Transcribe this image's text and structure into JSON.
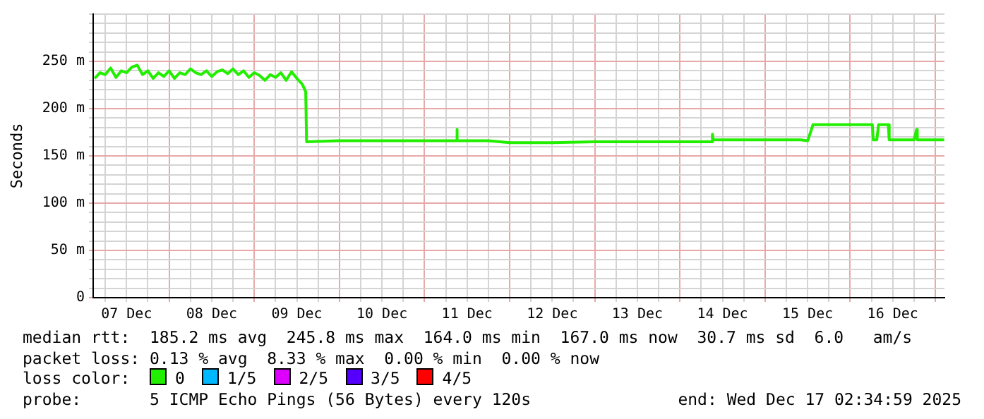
{
  "chart_data": {
    "type": "line",
    "ylabel": "Seconds",
    "xlim": [
      "2025-12-07T02:35",
      "2025-12-17T02:35"
    ],
    "xticks": [
      {
        "value": "2025-12-07T06:00",
        "label": null
      },
      {
        "value": "2025-12-07T12:00",
        "label": "07 Dec"
      },
      {
        "value": "2025-12-07T18:00",
        "label": null
      },
      {
        "value": "2025-12-08T00:00",
        "label": null
      },
      {
        "value": "2025-12-08T06:00",
        "label": null
      },
      {
        "value": "2025-12-08T12:00",
        "label": "08 Dec"
      },
      {
        "value": "2025-12-08T18:00",
        "label": null
      },
      {
        "value": "2025-12-09T00:00",
        "label": null
      },
      {
        "value": "2025-12-09T06:00",
        "label": null
      },
      {
        "value": "2025-12-09T12:00",
        "label": "09 Dec"
      },
      {
        "value": "2025-12-09T18:00",
        "label": null
      },
      {
        "value": "2025-12-10T00:00",
        "label": null
      },
      {
        "value": "2025-12-10T06:00",
        "label": null
      },
      {
        "value": "2025-12-10T12:00",
        "label": "10 Dec"
      },
      {
        "value": "2025-12-10T18:00",
        "label": null
      },
      {
        "value": "2025-12-11T00:00",
        "label": null
      },
      {
        "value": "2025-12-11T06:00",
        "label": null
      },
      {
        "value": "2025-12-11T12:00",
        "label": "11 Dec"
      },
      {
        "value": "2025-12-11T18:00",
        "label": null
      },
      {
        "value": "2025-12-12T00:00",
        "label": null
      },
      {
        "value": "2025-12-12T06:00",
        "label": null
      },
      {
        "value": "2025-12-12T12:00",
        "label": "12 Dec"
      },
      {
        "value": "2025-12-12T18:00",
        "label": null
      },
      {
        "value": "2025-12-13T00:00",
        "label": null
      },
      {
        "value": "2025-12-13T06:00",
        "label": null
      },
      {
        "value": "2025-12-13T12:00",
        "label": "13 Dec"
      },
      {
        "value": "2025-12-13T18:00",
        "label": null
      },
      {
        "value": "2025-12-14T00:00",
        "label": null
      },
      {
        "value": "2025-12-14T06:00",
        "label": null
      },
      {
        "value": "2025-12-14T12:00",
        "label": "14 Dec"
      },
      {
        "value": "2025-12-14T18:00",
        "label": null
      },
      {
        "value": "2025-12-15T00:00",
        "label": null
      },
      {
        "value": "2025-12-15T06:00",
        "label": null
      },
      {
        "value": "2025-12-15T12:00",
        "label": "15 Dec"
      },
      {
        "value": "2025-12-15T18:00",
        "label": null
      },
      {
        "value": "2025-12-16T00:00",
        "label": null
      },
      {
        "value": "2025-12-16T06:00",
        "label": null
      },
      {
        "value": "2025-12-16T12:00",
        "label": "16 Dec"
      },
      {
        "value": "2025-12-16T18:00",
        "label": null
      },
      {
        "value": "2025-12-17T00:00",
        "label": null
      }
    ],
    "ylim": [
      0,
      300
    ],
    "yticks": [
      0,
      {
        "value": 10,
        "label": null
      },
      {
        "value": 20,
        "label": null
      },
      {
        "value": 30,
        "label": null
      },
      {
        "value": 40,
        "label": null
      },
      {
        "value": 50,
        "label": "50 m"
      },
      {
        "value": 60,
        "label": null
      },
      {
        "value": 70,
        "label": null
      },
      {
        "value": 80,
        "label": null
      },
      {
        "value": 90,
        "label": null
      },
      {
        "value": 100,
        "label": "100 m"
      },
      {
        "value": 110,
        "label": null
      },
      {
        "value": 120,
        "label": null
      },
      {
        "value": 130,
        "label": null
      },
      {
        "value": 140,
        "label": null
      },
      {
        "value": 150,
        "label": "150 m"
      },
      {
        "value": 160,
        "label": null
      },
      {
        "value": 170,
        "label": null
      },
      {
        "value": 180,
        "label": null
      },
      {
        "value": 190,
        "label": null
      },
      {
        "value": 200,
        "label": "200 m"
      },
      {
        "value": 210,
        "label": null
      },
      {
        "value": 220,
        "label": null
      },
      {
        "value": 230,
        "label": null
      },
      {
        "value": 240,
        "label": null
      },
      {
        "value": 250,
        "label": "250 m"
      },
      {
        "value": 260,
        "label": null
      },
      {
        "value": 270,
        "label": null
      },
      {
        "value": 280,
        "label": null
      },
      {
        "value": 290,
        "label": null
      },
      {
        "value": 300,
        "label": null
      }
    ],
    "grid": true,
    "legend": "bottom",
    "legend_title": "loss color:",
    "marker": "none",
    "line_style": "solid",
    "x": [
      "2025-12-07T03:00",
      "2025-12-07T04:30",
      "2025-12-07T06:00",
      "2025-12-07T07:30",
      "2025-12-07T09:00",
      "2025-12-07T10:30",
      "2025-12-07T12:00",
      "2025-12-07T13:30",
      "2025-12-07T15:00",
      "2025-12-07T16:30",
      "2025-12-07T18:00",
      "2025-12-07T19:30",
      "2025-12-07T21:00",
      "2025-12-07T22:30",
      "2025-12-08T00:00",
      "2025-12-08T01:30",
      "2025-12-08T03:00",
      "2025-12-08T04:30",
      "2025-12-08T06:00",
      "2025-12-08T07:30",
      "2025-12-08T09:00",
      "2025-12-08T10:30",
      "2025-12-08T12:00",
      "2025-12-08T13:30",
      "2025-12-08T15:00",
      "2025-12-08T16:30",
      "2025-12-08T18:00",
      "2025-12-08T19:30",
      "2025-12-08T21:00",
      "2025-12-08T22:30",
      "2025-12-09T00:00",
      "2025-12-09T01:30",
      "2025-12-09T03:00",
      "2025-12-09T04:30",
      "2025-12-09T06:00",
      "2025-12-09T07:30",
      "2025-12-09T09:00",
      "2025-12-09T10:30",
      "2025-12-09T12:00",
      "2025-12-09T13:30",
      "2025-12-09T14:30",
      "2025-12-09T14:45",
      "2025-12-10T00:00",
      "2025-12-11T09:00",
      "2025-12-11T09:07",
      "2025-12-11T09:15",
      "2025-12-11T18:00",
      "2025-12-12T00:00",
      "2025-12-12T12:00",
      "2025-12-13T00:00",
      "2025-12-14T09:00",
      "2025-12-14T09:10",
      "2025-12-14T09:20",
      "2025-12-15T00:00",
      "2025-12-15T10:00",
      "2025-12-15T12:00",
      "2025-12-15T13:00",
      "2025-12-15T13:30",
      "2025-12-16T06:15",
      "2025-12-16T06:30",
      "2025-12-16T07:30",
      "2025-12-16T08:00",
      "2025-12-16T10:45",
      "2025-12-16T11:00",
      "2025-12-16T18:00",
      "2025-12-16T18:45",
      "2025-12-16T18:55",
      "2025-12-17T02:30"
    ],
    "series": [
      {
        "name": "0",
        "color": "#22ee00",
        "values": [
          232,
          238,
          236,
          243,
          233,
          240,
          238,
          244,
          246,
          236,
          240,
          232,
          238,
          234,
          240,
          232,
          238,
          236,
          242,
          238,
          236,
          240,
          234,
          239,
          241,
          237,
          242,
          236,
          240,
          233,
          238,
          235,
          230,
          236,
          233,
          238,
          230,
          239,
          232,
          226,
          218,
          165,
          166,
          166,
          178,
          166,
          166,
          164,
          164,
          165,
          165,
          173,
          167,
          167,
          167,
          166,
          177,
          183,
          183,
          167,
          167,
          183,
          183,
          167,
          167,
          178,
          167,
          167
        ]
      },
      {
        "name": "1/5",
        "color": "#00b8ff",
        "values": [
          null,
          null,
          null,
          null,
          null,
          null,
          null,
          null,
          null,
          null,
          null,
          null,
          null,
          null,
          null,
          null,
          null,
          null,
          null,
          null,
          null,
          null,
          null,
          null,
          null,
          null,
          null,
          null,
          null,
          null,
          null,
          null,
          null,
          null,
          null,
          null,
          null,
          null,
          null,
          null,
          null,
          null,
          null,
          null,
          null,
          null,
          null,
          null,
          null,
          null,
          null,
          null,
          null,
          null,
          null,
          null,
          null,
          null,
          null,
          null,
          null,
          null,
          null,
          null,
          null,
          null,
          null,
          null
        ]
      },
      {
        "name": "2/5",
        "color": "#dd00ff",
        "values": [
          null,
          null,
          null,
          null,
          null,
          null,
          null,
          null,
          null,
          null,
          null,
          null,
          null,
          null,
          null,
          null,
          null,
          null,
          null,
          null,
          null,
          null,
          null,
          null,
          null,
          null,
          null,
          null,
          null,
          null,
          null,
          null,
          null,
          null,
          null,
          null,
          null,
          null,
          null,
          null,
          null,
          null,
          null,
          null,
          null,
          null,
          null,
          null,
          null,
          null,
          null,
          null,
          null,
          null,
          null,
          null,
          null,
          null,
          null,
          null,
          null,
          null,
          null,
          null,
          null,
          null,
          null,
          null
        ]
      },
      {
        "name": "3/5",
        "color": "#5500ff",
        "values": [
          null,
          null,
          null,
          null,
          null,
          null,
          null,
          null,
          null,
          null,
          null,
          null,
          null,
          null,
          null,
          null,
          null,
          null,
          null,
          null,
          null,
          null,
          null,
          null,
          null,
          null,
          null,
          null,
          null,
          null,
          null,
          null,
          null,
          null,
          null,
          null,
          null,
          null,
          null,
          null,
          null,
          null,
          null,
          null,
          null,
          null,
          null,
          null,
          null,
          null,
          null,
          null,
          null,
          null,
          null,
          null,
          null,
          null,
          null,
          null,
          null,
          null,
          null,
          null,
          null,
          null,
          null,
          null
        ]
      },
      {
        "name": "4/5",
        "color": "#ff0000",
        "values": [
          null,
          null,
          null,
          null,
          null,
          null,
          null,
          null,
          null,
          null,
          null,
          null,
          null,
          null,
          null,
          null,
          null,
          null,
          null,
          null,
          null,
          null,
          null,
          null,
          null,
          null,
          null,
          null,
          null,
          null,
          null,
          null,
          null,
          null,
          null,
          null,
          null,
          null,
          null,
          null,
          null,
          null,
          null,
          null,
          null,
          null,
          null,
          null,
          null,
          null,
          null,
          null,
          null,
          null,
          null,
          null,
          null,
          null,
          null,
          null,
          null,
          null,
          null,
          null,
          null,
          null,
          null,
          null
        ]
      }
    ],
    "annotations": [
      "median rtt:  185.2 ms avg  245.8 ms max  164.0 ms min  167.0 ms now  30.7 ms sd  6.0   am/s",
      "packet loss: 0.13 % avg  8.33 % max  0.00 % min  0.00 % now",
      "probe:       5 ICMP Echo Pings (56 Bytes) every 120s",
      "end: Wed Dec 17 02:34:59 2025"
    ]
  }
}
